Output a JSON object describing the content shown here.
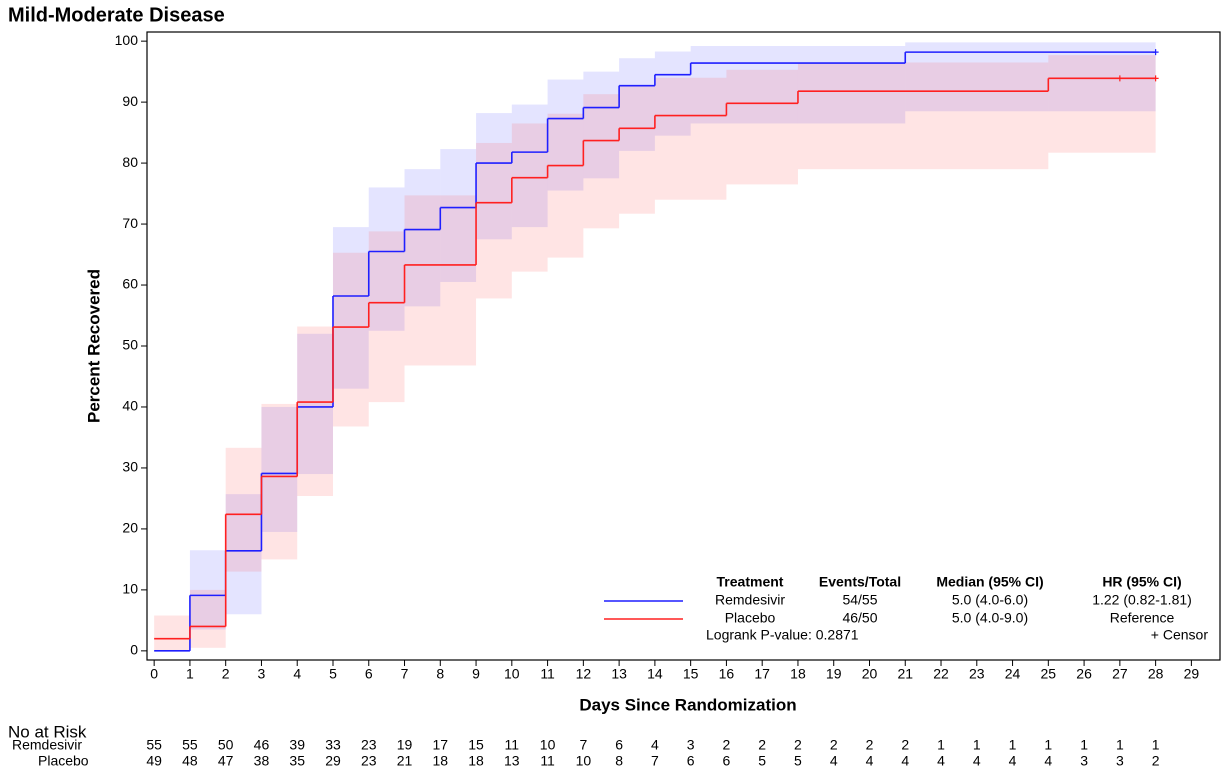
{
  "chart_data": {
    "type": "step",
    "title": "Mild-Moderate Disease",
    "xlabel": "Days Since Randomization",
    "ylabel": "Percent Recovered",
    "xlim": [
      -0.2,
      29.8
    ],
    "ylim": [
      -1.5,
      101.5
    ],
    "xticks": [
      0,
      1,
      2,
      3,
      4,
      5,
      6,
      7,
      8,
      9,
      10,
      11,
      12,
      13,
      14,
      15,
      16,
      17,
      18,
      19,
      20,
      21,
      22,
      23,
      24,
      25,
      26,
      27,
      28,
      29
    ],
    "yticks": [
      0,
      10,
      20,
      30,
      40,
      50,
      60,
      70,
      80,
      90,
      100
    ],
    "series": [
      {
        "name": "Remdesivir",
        "color": "#1f1fff",
        "band_color": "rgba(90,90,255,0.16)",
        "x": [
          0,
          1,
          2,
          3,
          4,
          5,
          6,
          7,
          8,
          9,
          10,
          11,
          12,
          13,
          14,
          15,
          21
        ],
        "values": [
          0,
          9.1,
          16.4,
          29.1,
          40,
          58.2,
          65.5,
          69.1,
          72.7,
          80,
          81.8,
          87.3,
          89.1,
          92.7,
          94.5,
          96.4,
          98.2
        ],
        "upper": [
          0,
          16.5,
          25.7,
          40,
          52,
          69.5,
          76,
          79,
          82.3,
          88.2,
          89.6,
          93.7,
          95,
          97.2,
          98.3,
          99.2,
          99.8
        ],
        "lower": [
          0,
          3.5,
          6,
          19.5,
          29,
          43,
          52.5,
          56.5,
          60.5,
          67.5,
          69.5,
          75.5,
          77.5,
          82,
          84.5,
          86.5,
          88.5
        ],
        "censor_x": [
          28
        ],
        "at_risk": [
          55,
          55,
          50,
          46,
          39,
          33,
          23,
          19,
          17,
          15,
          11,
          10,
          7,
          6,
          4,
          3,
          2,
          2,
          2,
          2,
          2,
          2,
          1,
          1,
          1,
          1,
          1,
          1,
          1
        ]
      },
      {
        "name": "Placebo",
        "color": "#ff2020",
        "band_color": "rgba(255,90,90,0.16)",
        "x": [
          0,
          1,
          2,
          3,
          4,
          5,
          6,
          7,
          9,
          10,
          11,
          12,
          13,
          14,
          16,
          18,
          25
        ],
        "values": [
          2,
          4,
          22.4,
          28.6,
          40.8,
          53.1,
          57.1,
          63.3,
          73.5,
          77.6,
          79.6,
          83.7,
          85.7,
          87.8,
          89.8,
          91.8,
          93.9
        ],
        "upper": [
          5.8,
          10,
          33.3,
          40.5,
          53.2,
          65.3,
          68.8,
          74.7,
          83.3,
          86.5,
          88.1,
          91.3,
          92.6,
          94,
          95.3,
          96.5,
          97.7
        ],
        "lower": [
          0,
          0.5,
          13,
          15,
          25.4,
          36.8,
          40.8,
          46.8,
          57.8,
          62.2,
          64.5,
          69.3,
          71.7,
          74,
          76.5,
          79,
          81.7
        ],
        "censor_x": [
          27,
          28
        ],
        "at_risk": [
          49,
          48,
          47,
          38,
          35,
          29,
          23,
          21,
          18,
          18,
          13,
          11,
          10,
          8,
          7,
          6,
          6,
          5,
          5,
          4,
          4,
          4,
          4,
          4,
          4,
          4,
          3,
          3,
          2
        ]
      }
    ],
    "legend_table": {
      "headers": [
        "Treatment",
        "Events/Total",
        "Median (95% CI)",
        "HR (95% CI)"
      ],
      "rows": [
        [
          "54/55",
          "5.0 (4.0-6.0)",
          "1.22 (0.82-1.81)"
        ],
        [
          "46/50",
          "5.0 (4.0-9.0)",
          "Reference"
        ]
      ],
      "logrank": "Logrank P-value: 0.2871",
      "censor_label": "+ Censor"
    },
    "at_risk_title": "No at Risk"
  }
}
